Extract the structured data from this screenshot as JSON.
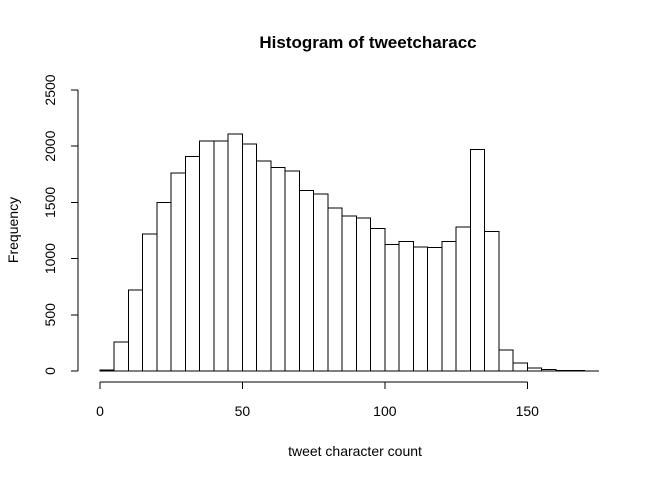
{
  "chart_data": {
    "type": "bar",
    "title": "Histogram of tweetcharacc",
    "xlabel": "tweet character count",
    "ylabel": "Frequency",
    "xlim": [
      0,
      175
    ],
    "ylim": [
      0,
      2500
    ],
    "x_ticks": [
      0,
      50,
      100,
      150
    ],
    "y_ticks": [
      0,
      500,
      1000,
      1500,
      2000,
      2500
    ],
    "bin_width": 5,
    "bins": [
      {
        "start": 0,
        "end": 5,
        "count": 10
      },
      {
        "start": 5,
        "end": 10,
        "count": 260
      },
      {
        "start": 10,
        "end": 15,
        "count": 720
      },
      {
        "start": 15,
        "end": 20,
        "count": 1220
      },
      {
        "start": 20,
        "end": 25,
        "count": 1500
      },
      {
        "start": 25,
        "end": 30,
        "count": 1760
      },
      {
        "start": 30,
        "end": 35,
        "count": 1910
      },
      {
        "start": 35,
        "end": 40,
        "count": 2045
      },
      {
        "start": 40,
        "end": 45,
        "count": 2045
      },
      {
        "start": 45,
        "end": 50,
        "count": 2110
      },
      {
        "start": 50,
        "end": 55,
        "count": 2020
      },
      {
        "start": 55,
        "end": 60,
        "count": 1870
      },
      {
        "start": 60,
        "end": 65,
        "count": 1810
      },
      {
        "start": 65,
        "end": 70,
        "count": 1780
      },
      {
        "start": 70,
        "end": 75,
        "count": 1605
      },
      {
        "start": 75,
        "end": 80,
        "count": 1575
      },
      {
        "start": 80,
        "end": 85,
        "count": 1450
      },
      {
        "start": 85,
        "end": 90,
        "count": 1380
      },
      {
        "start": 90,
        "end": 95,
        "count": 1360
      },
      {
        "start": 95,
        "end": 100,
        "count": 1270
      },
      {
        "start": 100,
        "end": 105,
        "count": 1125
      },
      {
        "start": 105,
        "end": 110,
        "count": 1150
      },
      {
        "start": 110,
        "end": 115,
        "count": 1105
      },
      {
        "start": 115,
        "end": 120,
        "count": 1100
      },
      {
        "start": 120,
        "end": 125,
        "count": 1150
      },
      {
        "start": 125,
        "end": 130,
        "count": 1280
      },
      {
        "start": 130,
        "end": 135,
        "count": 1970
      },
      {
        "start": 135,
        "end": 140,
        "count": 1240
      },
      {
        "start": 140,
        "end": 145,
        "count": 185
      },
      {
        "start": 145,
        "end": 150,
        "count": 70
      },
      {
        "start": 150,
        "end": 155,
        "count": 25
      },
      {
        "start": 155,
        "end": 160,
        "count": 15
      },
      {
        "start": 160,
        "end": 165,
        "count": 5
      },
      {
        "start": 165,
        "end": 170,
        "count": 3
      },
      {
        "start": 170,
        "end": 175,
        "count": 2
      }
    ]
  }
}
